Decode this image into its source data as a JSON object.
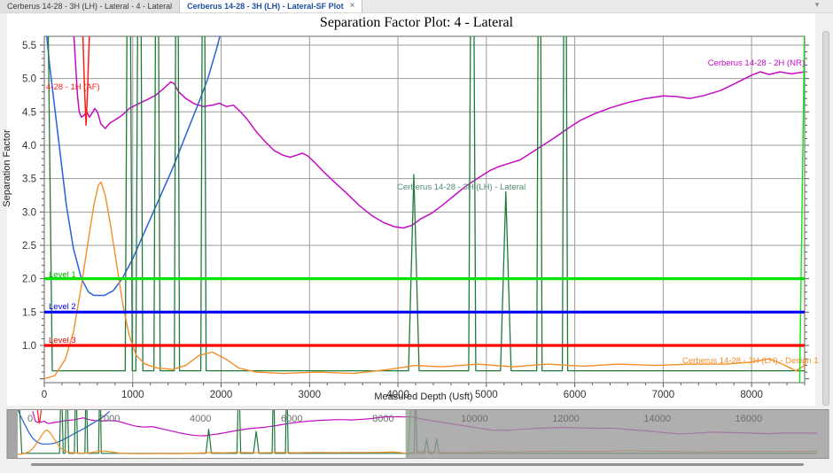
{
  "tabs": [
    {
      "label": "Cerberus 14-28 - 3H (LH) - Lateral - 4 - Lateral",
      "active": false
    },
    {
      "label": "Cerberus 14-28 - 3H (LH) - Lateral-SF Plot",
      "active": true,
      "close_glyph": "×"
    }
  ],
  "icons": {
    "panel_menu_glyph": "▾"
  },
  "chart_data": {
    "type": "line",
    "title": "Separation Factor Plot: 4 - Lateral",
    "xlabel": "Measured Depth (Usft)",
    "ylabel": "Separation Factor",
    "xlim": [
      0,
      8600
    ],
    "ylim": [
      0.44,
      5.63
    ],
    "x_ticks": [
      0,
      1000,
      2000,
      3000,
      4000,
      5000,
      6000,
      7000,
      8000
    ],
    "y_ticks": [
      1.0,
      1.5,
      2.0,
      2.5,
      3.0,
      3.5,
      4.0,
      4.5,
      5.0,
      5.5
    ],
    "grid": true,
    "legend_position": "labels-on-curves",
    "levels": [
      {
        "label": "Level 1",
        "value": 2.0,
        "color": "#00E400"
      },
      {
        "label": "Level 2",
        "value": 1.5,
        "color": "#0000FE"
      },
      {
        "label": "Level 3",
        "value": 1.0,
        "color": "#FE0000"
      }
    ],
    "series": [
      {
        "id": "offset-2h-nr",
        "label": "Cerberus 14-28 - 2H (NR)",
        "color": "#C40CC4",
        "width": 1.5,
        "points": [
          [
            330,
            5.75
          ],
          [
            355,
            5.2
          ],
          [
            375,
            4.75
          ],
          [
            395,
            4.5
          ],
          [
            420,
            4.42
          ],
          [
            450,
            4.45
          ],
          [
            480,
            4.5
          ],
          [
            510,
            4.42
          ],
          [
            540,
            4.48
          ],
          [
            570,
            4.55
          ],
          [
            600,
            4.5
          ],
          [
            640,
            4.32
          ],
          [
            690,
            4.25
          ],
          [
            740,
            4.33
          ],
          [
            800,
            4.38
          ],
          [
            880,
            4.45
          ],
          [
            960,
            4.55
          ],
          [
            1060,
            4.62
          ],
          [
            1160,
            4.68
          ],
          [
            1260,
            4.75
          ],
          [
            1350,
            4.85
          ],
          [
            1430,
            4.95
          ],
          [
            1470,
            4.92
          ],
          [
            1520,
            4.8
          ],
          [
            1600,
            4.7
          ],
          [
            1700,
            4.62
          ],
          [
            1800,
            4.58
          ],
          [
            1900,
            4.6
          ],
          [
            1980,
            4.63
          ],
          [
            2060,
            4.58
          ],
          [
            2140,
            4.6
          ],
          [
            2220,
            4.5
          ],
          [
            2300,
            4.38
          ],
          [
            2400,
            4.2
          ],
          [
            2500,
            4.05
          ],
          [
            2600,
            3.92
          ],
          [
            2700,
            3.85
          ],
          [
            2780,
            3.82
          ],
          [
            2850,
            3.85
          ],
          [
            2920,
            3.88
          ],
          [
            2980,
            3.84
          ],
          [
            3060,
            3.74
          ],
          [
            3160,
            3.6
          ],
          [
            3280,
            3.45
          ],
          [
            3420,
            3.28
          ],
          [
            3560,
            3.1
          ],
          [
            3700,
            2.95
          ],
          [
            3840,
            2.84
          ],
          [
            3960,
            2.78
          ],
          [
            4060,
            2.76
          ],
          [
            4160,
            2.8
          ],
          [
            4260,
            2.9
          ],
          [
            4380,
            2.98
          ],
          [
            4500,
            3.1
          ],
          [
            4640,
            3.25
          ],
          [
            4780,
            3.4
          ],
          [
            4920,
            3.52
          ],
          [
            5040,
            3.62
          ],
          [
            5140,
            3.68
          ],
          [
            5260,
            3.73
          ],
          [
            5380,
            3.78
          ],
          [
            5500,
            3.88
          ],
          [
            5640,
            4.0
          ],
          [
            5780,
            4.12
          ],
          [
            5920,
            4.25
          ],
          [
            6060,
            4.37
          ],
          [
            6220,
            4.47
          ],
          [
            6400,
            4.56
          ],
          [
            6600,
            4.64
          ],
          [
            6800,
            4.7
          ],
          [
            7000,
            4.74
          ],
          [
            7150,
            4.73
          ],
          [
            7300,
            4.7
          ],
          [
            7450,
            4.74
          ],
          [
            7650,
            4.82
          ],
          [
            7850,
            4.95
          ],
          [
            8000,
            5.05
          ],
          [
            8100,
            5.1
          ],
          [
            8200,
            5.06
          ],
          [
            8320,
            5.1
          ],
          [
            8450,
            5.07
          ],
          [
            8600,
            5.1
          ],
          [
            8900,
            4.75
          ],
          [
            9300,
            4.4
          ],
          [
            9700,
            4.05
          ],
          [
            10100,
            3.7
          ],
          [
            10400,
            3.45
          ],
          [
            10700,
            3.42
          ],
          [
            11000,
            3.55
          ],
          [
            11400,
            3.68
          ],
          [
            11900,
            3.78
          ],
          [
            12200,
            3.73
          ],
          [
            12700,
            3.68
          ],
          [
            13000,
            3.7
          ],
          [
            13400,
            3.52
          ],
          [
            13800,
            3.35
          ],
          [
            14200,
            3.12
          ],
          [
            14500,
            3.0
          ],
          [
            14800,
            3.06
          ],
          [
            15200,
            3.22
          ],
          [
            15600,
            3.15
          ],
          [
            16000,
            3.1
          ],
          [
            16400,
            3.02
          ],
          [
            16800,
            3.1
          ],
          [
            17500,
            3.08
          ]
        ]
      },
      {
        "id": "offset-1h-af",
        "label": "4-28 - 1H (AF)",
        "color": "#FF1A1A",
        "width": 1.5,
        "points": [
          [
            430,
            5.9
          ],
          [
            455,
            4.85
          ],
          [
            472,
            4.3
          ],
          [
            490,
            4.85
          ],
          [
            515,
            5.9
          ]
        ]
      },
      {
        "id": "offset-unlabeled-blue",
        "label": "",
        "color": "#2A60D8",
        "width": 1.5,
        "points": [
          [
            0,
            6.0
          ],
          [
            60,
            5.2
          ],
          [
            150,
            4.2
          ],
          [
            250,
            3.1
          ],
          [
            330,
            2.45
          ],
          [
            420,
            2.0
          ],
          [
            500,
            1.8
          ],
          [
            560,
            1.75
          ],
          [
            680,
            1.75
          ],
          [
            780,
            1.82
          ],
          [
            880,
            2.0
          ],
          [
            1000,
            2.3
          ],
          [
            1150,
            2.75
          ],
          [
            1300,
            3.2
          ],
          [
            1450,
            3.65
          ],
          [
            1600,
            4.15
          ],
          [
            1750,
            4.65
          ],
          [
            1850,
            5.0
          ],
          [
            1950,
            5.45
          ],
          [
            2010,
            5.75
          ]
        ]
      },
      {
        "id": "subject-3h-lateral",
        "label": "Cerberus 14-28 - 3H (LH) - Lateral",
        "color": "#1F7A3A",
        "width": 1.3,
        "points": [
          [
            0,
            6.2
          ],
          [
            40,
            6.2
          ],
          [
            90,
            0.62
          ],
          [
            915,
            0.62
          ],
          [
            955,
            11
          ],
          [
            995,
            0.62
          ],
          [
            1035,
            0.62
          ],
          [
            1075,
            11
          ],
          [
            1115,
            0.62
          ],
          [
            1240,
            0.62
          ],
          [
            1275,
            11
          ],
          [
            1310,
            0.62
          ],
          [
            1470,
            0.62
          ],
          [
            1500,
            11
          ],
          [
            1530,
            0.62
          ],
          [
            1770,
            0.62
          ],
          [
            1800,
            11
          ],
          [
            1830,
            0.62
          ],
          [
            4120,
            0.62
          ],
          [
            4180,
            3.56
          ],
          [
            4240,
            0.62
          ],
          [
            4800,
            0.62
          ],
          [
            4840,
            11
          ],
          [
            4880,
            0.62
          ],
          [
            5160,
            0.62
          ],
          [
            5220,
            3.3
          ],
          [
            5280,
            0.62
          ],
          [
            5570,
            0.62
          ],
          [
            5600,
            11
          ],
          [
            5630,
            0.62
          ],
          [
            5860,
            0.62
          ],
          [
            5890,
            11
          ],
          [
            5920,
            0.62
          ],
          [
            8600,
            0.62
          ],
          [
            8680,
            0.62
          ],
          [
            8710,
            11
          ],
          [
            8740,
            0.62
          ],
          [
            8900,
            0.62
          ],
          [
            8950,
            2.4
          ],
          [
            9000,
            0.62
          ],
          [
            9120,
            0.62
          ],
          [
            9170,
            2.4
          ],
          [
            9220,
            0.62
          ],
          [
            17500,
            0.62
          ]
        ]
      },
      {
        "id": "design-1",
        "label": "Cerberus 14-28 - 3H (LH) - Design 1",
        "color": "#F58D26",
        "width": 1.4,
        "points": [
          [
            0,
            0.5
          ],
          [
            120,
            0.55
          ],
          [
            240,
            0.8
          ],
          [
            330,
            1.2
          ],
          [
            420,
            1.9
          ],
          [
            500,
            2.6
          ],
          [
            560,
            3.1
          ],
          [
            610,
            3.4
          ],
          [
            640,
            3.45
          ],
          [
            690,
            3.25
          ],
          [
            750,
            2.8
          ],
          [
            820,
            2.2
          ],
          [
            890,
            1.6
          ],
          [
            960,
            1.15
          ],
          [
            1040,
            0.85
          ],
          [
            1140,
            0.72
          ],
          [
            1280,
            0.66
          ],
          [
            1450,
            0.64
          ],
          [
            1600,
            0.7
          ],
          [
            1750,
            0.85
          ],
          [
            1900,
            0.9
          ],
          [
            2050,
            0.8
          ],
          [
            2200,
            0.66
          ],
          [
            2400,
            0.6
          ],
          [
            2700,
            0.58
          ],
          [
            3100,
            0.6
          ],
          [
            3500,
            0.58
          ],
          [
            3900,
            0.64
          ],
          [
            4200,
            0.7
          ],
          [
            4500,
            0.68
          ],
          [
            4900,
            0.72
          ],
          [
            5300,
            0.68
          ],
          [
            5700,
            0.72
          ],
          [
            6100,
            0.69
          ],
          [
            6500,
            0.72
          ],
          [
            6900,
            0.7
          ],
          [
            7300,
            0.72
          ],
          [
            7700,
            0.72
          ],
          [
            8000,
            0.75
          ],
          [
            8200,
            0.8
          ],
          [
            8350,
            0.72
          ],
          [
            8500,
            0.62
          ],
          [
            8600,
            0.7
          ],
          [
            8800,
            0.85
          ],
          [
            9100,
            0.75
          ],
          [
            9500,
            0.7
          ],
          [
            9900,
            0.72
          ],
          [
            10400,
            0.85
          ],
          [
            10800,
            0.8
          ],
          [
            11300,
            0.85
          ],
          [
            11800,
            0.88
          ],
          [
            12300,
            0.85
          ],
          [
            12800,
            0.85
          ],
          [
            13300,
            0.95
          ],
          [
            13700,
            0.9
          ],
          [
            14300,
            0.84
          ],
          [
            14900,
            0.8
          ],
          [
            15500,
            0.85
          ],
          [
            16100,
            0.85
          ],
          [
            16700,
            0.83
          ],
          [
            17500,
            0.88
          ]
        ]
      },
      {
        "id": "offset-unlabeled-green",
        "label": "",
        "color": "#0FE60F",
        "width": 1.4,
        "points": [
          [
            8540,
            0.1
          ],
          [
            8600,
            5.9
          ],
          [
            8760,
            6.3
          ],
          [
            9400,
            6.3
          ]
        ]
      }
    ],
    "navigator": {
      "x_ticks": [
        0,
        2000,
        4000,
        6000,
        8000,
        10000,
        12000,
        14000,
        16000
      ],
      "x_max": 17750,
      "visible_range": [
        0,
        8490
      ]
    }
  }
}
